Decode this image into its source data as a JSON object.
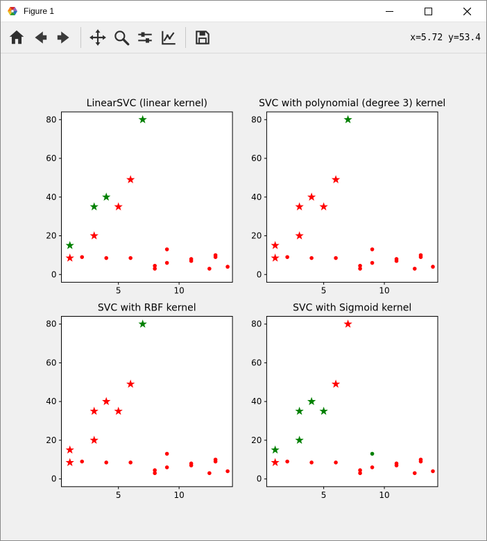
{
  "window": {
    "title": "Figure 1",
    "controls": {
      "minimize": "minimize",
      "maximize": "maximize",
      "close": "close"
    }
  },
  "toolbar": {
    "coordinates": "x=5.72 y=53.4",
    "buttons": [
      {
        "name": "home"
      },
      {
        "name": "back"
      },
      {
        "name": "forward"
      },
      {
        "name": "pan"
      },
      {
        "name": "zoom"
      },
      {
        "name": "configure-subplots"
      },
      {
        "name": "edit-parameters"
      },
      {
        "name": "save"
      }
    ]
  },
  "colors": {
    "red": "#ff0000",
    "green": "#008000",
    "figure_bg": "#f0f0f0",
    "axes_bg": "#ffffff"
  },
  "chart_data": [
    {
      "type": "scatter",
      "title": "LinearSVC (linear kernel)",
      "xlim": [
        0.3,
        14.4
      ],
      "ylim": [
        -4,
        84
      ],
      "xticks": [
        5,
        10
      ],
      "yticks": [
        0,
        20,
        40,
        60,
        80
      ],
      "grid": false,
      "points": [
        {
          "x": 1,
          "y": 15,
          "marker": "star",
          "color": "green"
        },
        {
          "x": 1,
          "y": 8.5,
          "marker": "star",
          "color": "red"
        },
        {
          "x": 2,
          "y": 9,
          "marker": "dot",
          "color": "red"
        },
        {
          "x": 3,
          "y": 20,
          "marker": "star",
          "color": "red"
        },
        {
          "x": 3,
          "y": 35,
          "marker": "star",
          "color": "green"
        },
        {
          "x": 4,
          "y": 40,
          "marker": "star",
          "color": "green"
        },
        {
          "x": 4,
          "y": 8.5,
          "marker": "dot",
          "color": "red"
        },
        {
          "x": 5,
          "y": 35,
          "marker": "star",
          "color": "red"
        },
        {
          "x": 6,
          "y": 49,
          "marker": "star",
          "color": "red"
        },
        {
          "x": 6,
          "y": 8.5,
          "marker": "dot",
          "color": "red"
        },
        {
          "x": 7,
          "y": 80,
          "marker": "star",
          "color": "green"
        },
        {
          "x": 8,
          "y": 4.5,
          "marker": "dot",
          "color": "red"
        },
        {
          "x": 8,
          "y": 3,
          "marker": "dot",
          "color": "red"
        },
        {
          "x": 9,
          "y": 6,
          "marker": "dot",
          "color": "red"
        },
        {
          "x": 9,
          "y": 13,
          "marker": "dot",
          "color": "red"
        },
        {
          "x": 11,
          "y": 8,
          "marker": "dot",
          "color": "red"
        },
        {
          "x": 11,
          "y": 7,
          "marker": "dot",
          "color": "red"
        },
        {
          "x": 12.5,
          "y": 3,
          "marker": "dot",
          "color": "red"
        },
        {
          "x": 13,
          "y": 10,
          "marker": "dot",
          "color": "red"
        },
        {
          "x": 13,
          "y": 9,
          "marker": "dot",
          "color": "red"
        },
        {
          "x": 14,
          "y": 4,
          "marker": "dot",
          "color": "red"
        }
      ]
    },
    {
      "type": "scatter",
      "title": "SVC with polynomial (degree 3) kernel",
      "xlim": [
        0.3,
        14.4
      ],
      "ylim": [
        -4,
        84
      ],
      "xticks": [
        5,
        10
      ],
      "yticks": [
        0,
        20,
        40,
        60,
        80
      ],
      "grid": false,
      "points": [
        {
          "x": 1,
          "y": 15,
          "marker": "star",
          "color": "red"
        },
        {
          "x": 1,
          "y": 8.5,
          "marker": "star",
          "color": "red"
        },
        {
          "x": 2,
          "y": 9,
          "marker": "dot",
          "color": "red"
        },
        {
          "x": 3,
          "y": 20,
          "marker": "star",
          "color": "red"
        },
        {
          "x": 3,
          "y": 35,
          "marker": "star",
          "color": "red"
        },
        {
          "x": 4,
          "y": 40,
          "marker": "star",
          "color": "red"
        },
        {
          "x": 4,
          "y": 8.5,
          "marker": "dot",
          "color": "red"
        },
        {
          "x": 5,
          "y": 35,
          "marker": "star",
          "color": "red"
        },
        {
          "x": 6,
          "y": 49,
          "marker": "star",
          "color": "red"
        },
        {
          "x": 6,
          "y": 8.5,
          "marker": "dot",
          "color": "red"
        },
        {
          "x": 7,
          "y": 80,
          "marker": "star",
          "color": "green"
        },
        {
          "x": 8,
          "y": 4.5,
          "marker": "dot",
          "color": "red"
        },
        {
          "x": 8,
          "y": 3,
          "marker": "dot",
          "color": "red"
        },
        {
          "x": 9,
          "y": 6,
          "marker": "dot",
          "color": "red"
        },
        {
          "x": 9,
          "y": 13,
          "marker": "dot",
          "color": "red"
        },
        {
          "x": 11,
          "y": 8,
          "marker": "dot",
          "color": "red"
        },
        {
          "x": 11,
          "y": 7,
          "marker": "dot",
          "color": "red"
        },
        {
          "x": 12.5,
          "y": 3,
          "marker": "dot",
          "color": "red"
        },
        {
          "x": 13,
          "y": 10,
          "marker": "dot",
          "color": "red"
        },
        {
          "x": 13,
          "y": 9,
          "marker": "dot",
          "color": "red"
        },
        {
          "x": 14,
          "y": 4,
          "marker": "dot",
          "color": "red"
        }
      ]
    },
    {
      "type": "scatter",
      "title": "SVC with RBF kernel",
      "xlim": [
        0.3,
        14.4
      ],
      "ylim": [
        -4,
        84
      ],
      "xticks": [
        5,
        10
      ],
      "yticks": [
        0,
        20,
        40,
        60,
        80
      ],
      "grid": false,
      "points": [
        {
          "x": 1,
          "y": 15,
          "marker": "star",
          "color": "red"
        },
        {
          "x": 1,
          "y": 8.5,
          "marker": "star",
          "color": "red"
        },
        {
          "x": 2,
          "y": 9,
          "marker": "dot",
          "color": "red"
        },
        {
          "x": 3,
          "y": 20,
          "marker": "star",
          "color": "red"
        },
        {
          "x": 3,
          "y": 35,
          "marker": "star",
          "color": "red"
        },
        {
          "x": 4,
          "y": 40,
          "marker": "star",
          "color": "red"
        },
        {
          "x": 4,
          "y": 8.5,
          "marker": "dot",
          "color": "red"
        },
        {
          "x": 5,
          "y": 35,
          "marker": "star",
          "color": "red"
        },
        {
          "x": 6,
          "y": 49,
          "marker": "star",
          "color": "red"
        },
        {
          "x": 6,
          "y": 8.5,
          "marker": "dot",
          "color": "red"
        },
        {
          "x": 7,
          "y": 80,
          "marker": "star",
          "color": "green"
        },
        {
          "x": 8,
          "y": 4.5,
          "marker": "dot",
          "color": "red"
        },
        {
          "x": 8,
          "y": 3,
          "marker": "dot",
          "color": "red"
        },
        {
          "x": 9,
          "y": 6,
          "marker": "dot",
          "color": "red"
        },
        {
          "x": 9,
          "y": 13,
          "marker": "dot",
          "color": "red"
        },
        {
          "x": 11,
          "y": 8,
          "marker": "dot",
          "color": "red"
        },
        {
          "x": 11,
          "y": 7,
          "marker": "dot",
          "color": "red"
        },
        {
          "x": 12.5,
          "y": 3,
          "marker": "dot",
          "color": "red"
        },
        {
          "x": 13,
          "y": 10,
          "marker": "dot",
          "color": "red"
        },
        {
          "x": 13,
          "y": 9,
          "marker": "dot",
          "color": "red"
        },
        {
          "x": 14,
          "y": 4,
          "marker": "dot",
          "color": "red"
        }
      ]
    },
    {
      "type": "scatter",
      "title": "SVC with Sigmoid kernel",
      "xlim": [
        0.3,
        14.4
      ],
      "ylim": [
        -4,
        84
      ],
      "xticks": [
        5,
        10
      ],
      "yticks": [
        0,
        20,
        40,
        60,
        80
      ],
      "grid": false,
      "points": [
        {
          "x": 1,
          "y": 15,
          "marker": "star",
          "color": "green"
        },
        {
          "x": 1,
          "y": 8.5,
          "marker": "star",
          "color": "red"
        },
        {
          "x": 2,
          "y": 9,
          "marker": "dot",
          "color": "red"
        },
        {
          "x": 3,
          "y": 20,
          "marker": "star",
          "color": "green"
        },
        {
          "x": 3,
          "y": 35,
          "marker": "star",
          "color": "green"
        },
        {
          "x": 4,
          "y": 40,
          "marker": "star",
          "color": "green"
        },
        {
          "x": 4,
          "y": 8.5,
          "marker": "dot",
          "color": "red"
        },
        {
          "x": 5,
          "y": 35,
          "marker": "star",
          "color": "green"
        },
        {
          "x": 6,
          "y": 49,
          "marker": "star",
          "color": "red"
        },
        {
          "x": 6,
          "y": 8.5,
          "marker": "dot",
          "color": "red"
        },
        {
          "x": 7,
          "y": 80,
          "marker": "star",
          "color": "red"
        },
        {
          "x": 8,
          "y": 4.5,
          "marker": "dot",
          "color": "red"
        },
        {
          "x": 8,
          "y": 3,
          "marker": "dot",
          "color": "red"
        },
        {
          "x": 9,
          "y": 6,
          "marker": "dot",
          "color": "red"
        },
        {
          "x": 9,
          "y": 13,
          "marker": "dot",
          "color": "green"
        },
        {
          "x": 11,
          "y": 8,
          "marker": "dot",
          "color": "red"
        },
        {
          "x": 11,
          "y": 7,
          "marker": "dot",
          "color": "red"
        },
        {
          "x": 12.5,
          "y": 3,
          "marker": "dot",
          "color": "red"
        },
        {
          "x": 13,
          "y": 10,
          "marker": "dot",
          "color": "red"
        },
        {
          "x": 13,
          "y": 9,
          "marker": "dot",
          "color": "red"
        },
        {
          "x": 14,
          "y": 4,
          "marker": "dot",
          "color": "red"
        }
      ]
    }
  ]
}
